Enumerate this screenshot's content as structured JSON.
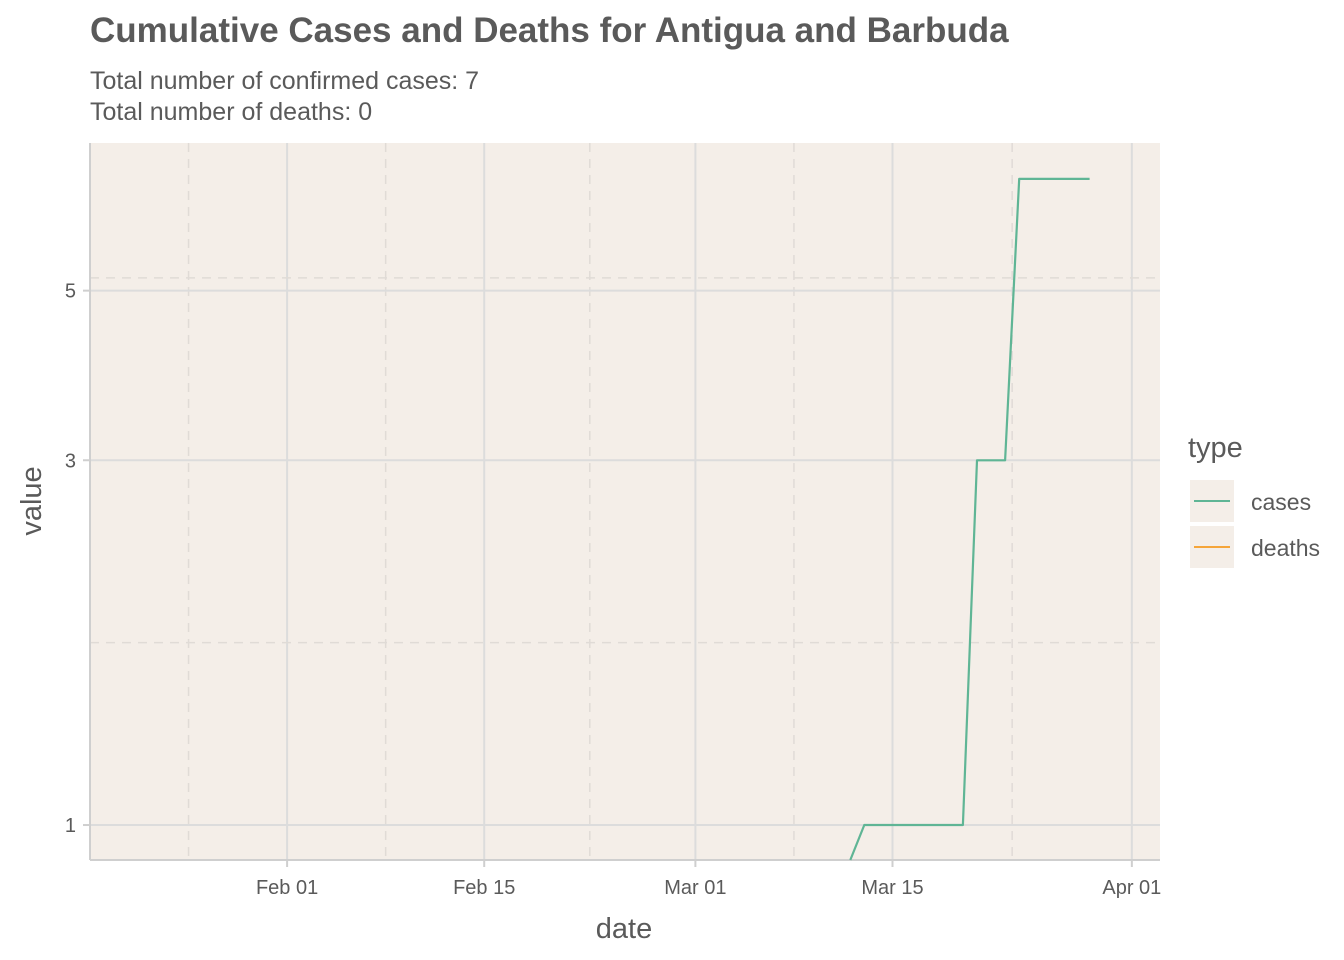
{
  "chart_data": {
    "type": "line",
    "title": "Cumulative Cases and Deaths for Antigua and Barbuda",
    "subtitle_lines": [
      "Total number of confirmed cases: 7",
      "Total number of deaths: 0"
    ],
    "xlabel": "date",
    "ylabel": "value",
    "x_ticks": [
      "Feb 01",
      "Feb 15",
      "Mar 01",
      "Mar 15",
      "Apr 01"
    ],
    "y_ticks": [
      "1",
      "3",
      "5"
    ],
    "y_scale": "log10",
    "ylim": [
      0.9,
      7.8
    ],
    "xlim": [
      "2020-01-18",
      "2020-04-03"
    ],
    "grid": true,
    "legend": {
      "title": "type",
      "placement": "right"
    },
    "series": [
      {
        "name": "cases",
        "color": "#5fb595",
        "points": [
          [
            "2020-03-12",
            0.9
          ],
          [
            "2020-03-13",
            1
          ],
          [
            "2020-03-20",
            1
          ],
          [
            "2020-03-21",
            3
          ],
          [
            "2020-03-23",
            3
          ],
          [
            "2020-03-24",
            7
          ],
          [
            "2020-03-29",
            7
          ]
        ]
      },
      {
        "name": "deaths",
        "color": "#f5a53a",
        "points": []
      }
    ]
  }
}
